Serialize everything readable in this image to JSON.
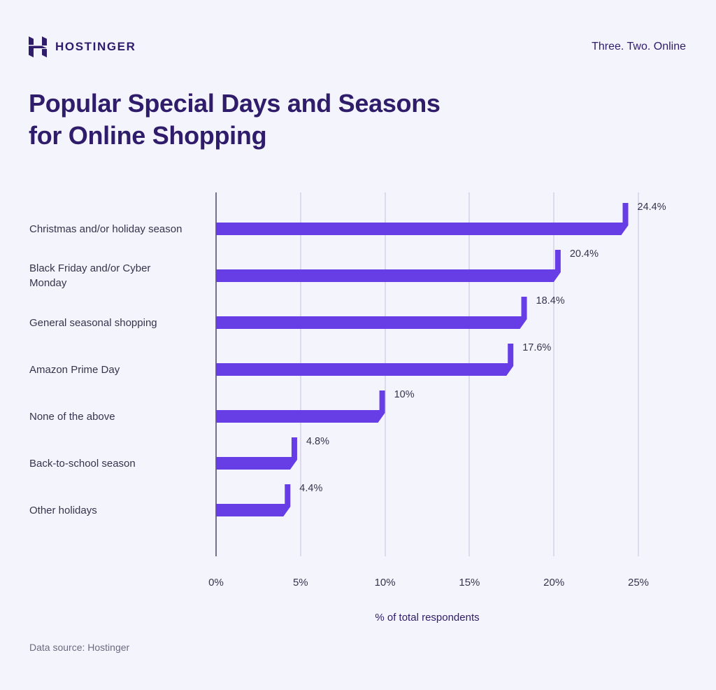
{
  "header": {
    "brand": "HOSTINGER",
    "logo_icon": "hostinger-h-logo",
    "tagline": "Three. Two. Online"
  },
  "colors": {
    "background": "#f4f4fc",
    "bar": "#673de6",
    "title": "#2f1c6a",
    "gridline": "#dcdaeb",
    "axis": "#76708f"
  },
  "chart_data": {
    "type": "bar",
    "orientation": "horizontal",
    "title": "Popular Special Days and Seasons for Online Shopping",
    "title_lines": [
      "Popular Special Days and Seasons",
      "for Online Shopping"
    ],
    "categories": [
      "Christmas and/or holiday season",
      "Black Friday and/or Cyber Monday",
      "General seasonal shopping",
      "Amazon Prime Day",
      "None of the above",
      "Back-to-school season",
      "Other holidays"
    ],
    "values": [
      24.4,
      20.4,
      18.4,
      17.6,
      10,
      4.8,
      4.4
    ],
    "value_labels": [
      "24.4%",
      "20.4%",
      "18.4%",
      "17.6%",
      "10%",
      "4.8%",
      "4.4%"
    ],
    "xlabel": "% of total respondents",
    "ylabel": "",
    "xlim": [
      0,
      25
    ],
    "x_ticks": [
      0,
      5,
      10,
      15,
      20,
      25
    ],
    "x_tick_labels": [
      "0%",
      "5%",
      "10%",
      "15%",
      "20%",
      "25%"
    ],
    "grid": "vertical",
    "legend": "none"
  },
  "footer": {
    "source": "Data source: Hostinger"
  }
}
